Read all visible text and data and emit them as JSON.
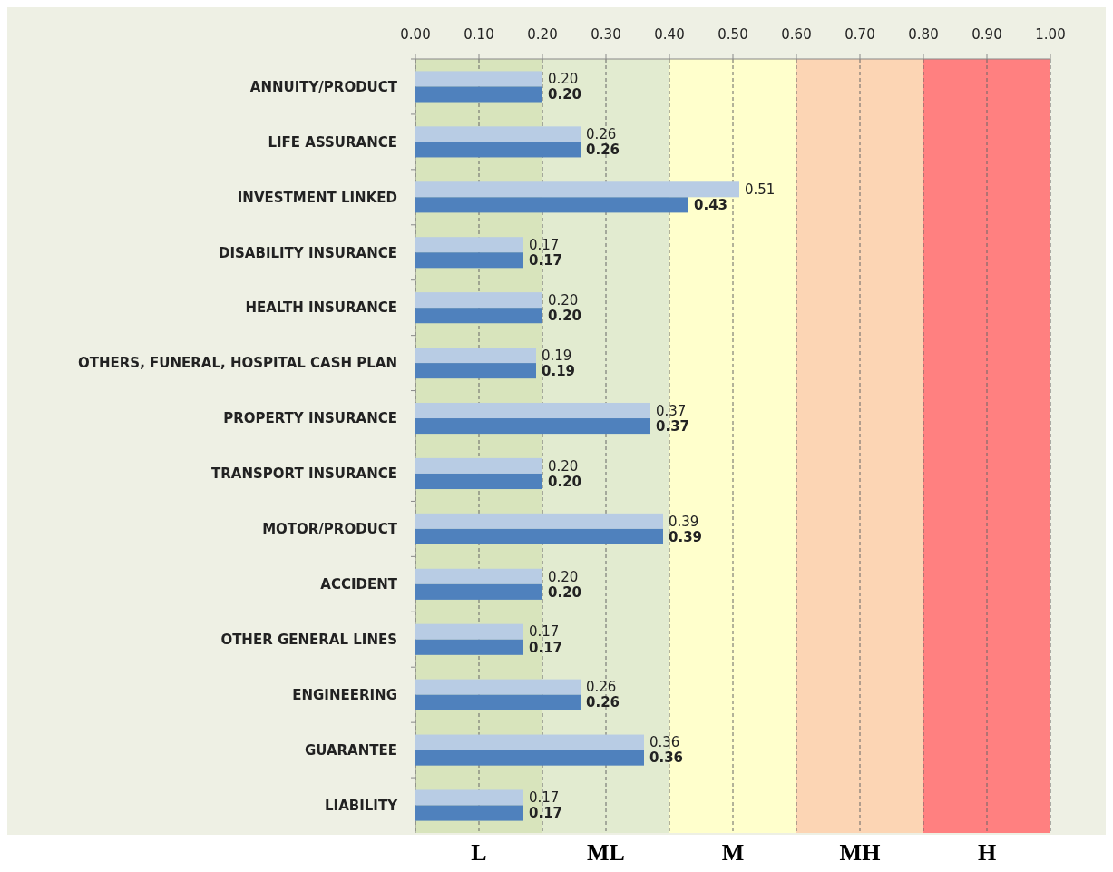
{
  "chart_data": {
    "type": "bar",
    "orientation": "horizontal",
    "categories": [
      "ANNUITY/PRODUCT",
      "LIFE ASSURANCE",
      "INVESTMENT LINKED",
      "DISABILITY INSURANCE",
      "HEALTH INSURANCE",
      "OTHERS, FUNERAL, HOSPITAL CASH PLAN",
      "PROPERTY INSURANCE",
      "TRANSPORT INSURANCE",
      "MOTOR/PRODUCT",
      "ACCIDENT",
      "OTHER GENERAL LINES",
      "ENGINEERING",
      "GUARANTEE",
      "LIABILITY"
    ],
    "series": [
      {
        "color": "#b8cce4",
        "values": [
          0.2,
          0.26,
          0.51,
          0.17,
          0.2,
          0.19,
          0.37,
          0.2,
          0.39,
          0.2,
          0.17,
          0.26,
          0.36,
          0.17
        ],
        "value_labels": [
          "0.20",
          "0.26",
          "0.51",
          "0.17",
          "0.20",
          "0.19",
          "0.37",
          "0.20",
          "0.39",
          "0.20",
          "0.17",
          "0.26",
          "0.36",
          "0.17"
        ]
      },
      {
        "color": "#4f81bd",
        "values": [
          0.2,
          0.26,
          0.43,
          0.17,
          0.2,
          0.19,
          0.37,
          0.2,
          0.39,
          0.2,
          0.17,
          0.26,
          0.36,
          0.17
        ],
        "value_labels": [
          "0.20",
          "0.26",
          "0.43",
          "0.17",
          "0.20",
          "0.19",
          "0.37",
          "0.20",
          "0.39",
          "0.20",
          "0.17",
          "0.26",
          "0.36",
          "0.17"
        ]
      }
    ],
    "xlim": [
      0,
      1
    ],
    "xticks": [
      {
        "value": 0,
        "label": "0.00"
      },
      {
        "value": 0.1,
        "label": "0.10"
      },
      {
        "value": 0.2,
        "label": "0.20"
      },
      {
        "value": 0.3,
        "label": "0.30"
      },
      {
        "value": 0.4,
        "label": "0.40"
      },
      {
        "value": 0.5,
        "label": "0.50"
      },
      {
        "value": 0.6,
        "label": "0.60"
      },
      {
        "value": 0.7,
        "label": "0.70"
      },
      {
        "value": 0.8,
        "label": "0.80"
      },
      {
        "value": 0.9,
        "label": "0.90"
      },
      {
        "value": 1,
        "label": "1.00"
      }
    ],
    "grid": "x",
    "bands": [
      {
        "axis": "x",
        "from": 0,
        "to": 0.2,
        "label": "L",
        "color": "#d8e4bc"
      },
      {
        "axis": "x",
        "from": 0.2,
        "to": 0.4,
        "label": "ML",
        "color": "#e2ebd0"
      },
      {
        "axis": "x",
        "from": 0.4,
        "to": 0.6,
        "label": "M",
        "color": "#ffffcc"
      },
      {
        "axis": "x",
        "from": 0.6,
        "to": 0.8,
        "label": "MH",
        "color": "#fcd5b4"
      },
      {
        "axis": "x",
        "from": 0.8,
        "to": 1,
        "label": "H",
        "color": "#ff8080"
      }
    ]
  }
}
